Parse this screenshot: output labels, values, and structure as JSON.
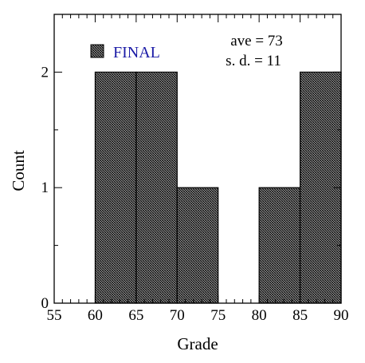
{
  "chart_data": {
    "type": "bar",
    "bins": [
      {
        "x0": 55,
        "x1": 60,
        "count": 0
      },
      {
        "x0": 60,
        "x1": 65,
        "count": 2
      },
      {
        "x0": 65,
        "x1": 70,
        "count": 2
      },
      {
        "x0": 70,
        "x1": 75,
        "count": 1
      },
      {
        "x0": 75,
        "x1": 80,
        "count": 0
      },
      {
        "x0": 80,
        "x1": 85,
        "count": 1
      },
      {
        "x0": 85,
        "x1": 90,
        "count": 2
      }
    ],
    "series": [
      {
        "name": "FINAL"
      }
    ],
    "xlabel": "Grade",
    "ylabel": "Count",
    "xlim": [
      55,
      90
    ],
    "ylim": [
      0,
      2.5
    ],
    "x_ticks": [
      "55",
      "60",
      "65",
      "70",
      "75",
      "80",
      "85",
      "90"
    ],
    "y_ticks": [
      "0",
      "1",
      "2"
    ],
    "grid": false,
    "legend_position": "top-left",
    "annotations": {
      "mean": "ave = 73",
      "sd": "s. d. = 11"
    },
    "colors": {
      "bar_fill": "#9a9a9a",
      "bar_hatch": "#000000",
      "legend_text": "#1a1aa6",
      "axis": "#000000"
    }
  }
}
